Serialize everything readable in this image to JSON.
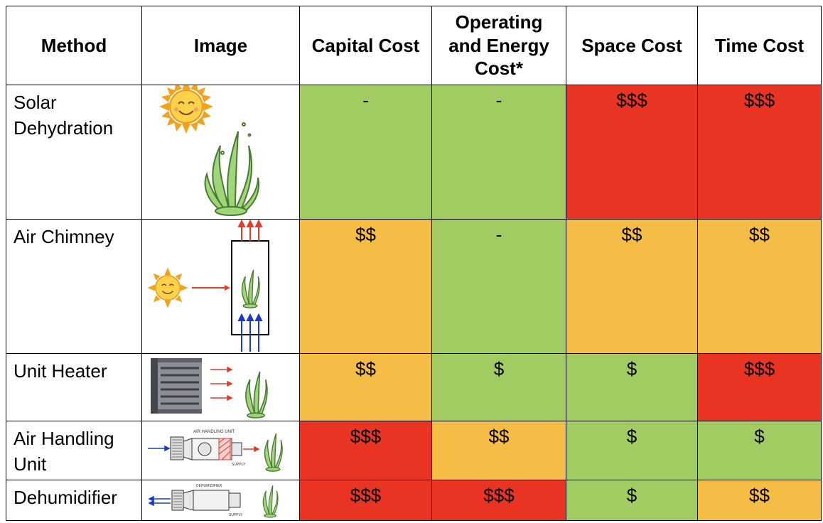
{
  "table": {
    "headers": [
      "Method",
      "Image",
      "Capital Cost",
      "Operating and Energy Cost*",
      "Space Cost",
      "Time Cost"
    ],
    "header_lines": {
      "operating": [
        "Operating",
        "and Energy",
        "Cost*"
      ]
    },
    "rows": [
      {
        "method": "Solar Dehydration",
        "method_lines": [
          "Solar",
          "Dehydration"
        ],
        "capital": "-",
        "operating": "-",
        "space": "$$$",
        "time": "$$$",
        "colors": [
          "green",
          "green",
          "red",
          "red"
        ]
      },
      {
        "method": "Air Chimney",
        "method_lines": [
          "Air Chimney"
        ],
        "capital": "$$",
        "operating": "-",
        "space": "$$",
        "time": "$$",
        "colors": [
          "orange",
          "green",
          "orange",
          "orange"
        ]
      },
      {
        "method": "Unit Heater",
        "method_lines": [
          "Unit Heater"
        ],
        "capital": "$$",
        "operating": "$",
        "space": "$",
        "time": "$$$",
        "colors": [
          "orange",
          "green",
          "green",
          "red"
        ]
      },
      {
        "method": "Air Handling Unit",
        "method_lines": [
          "Air Handling",
          "Unit"
        ],
        "capital": "$$$",
        "operating": "$$",
        "space": "$",
        "time": "$",
        "colors": [
          "red",
          "orange",
          "green",
          "green"
        ]
      },
      {
        "method": "Dehumidifier",
        "method_lines": [
          "Dehumidifier"
        ],
        "capital": "$$$",
        "operating": "$$$",
        "space": "$",
        "time": "$$",
        "colors": [
          "red",
          "red",
          "green",
          "orange"
        ]
      }
    ]
  },
  "image_labels": {
    "ahu": "AIR HANDLING UNIT",
    "ahu_supply": "SUPPLY",
    "dehumidifier": "DEHUMIDIFIER",
    "dehumidifier_supply": "SUPPLY"
  },
  "colors": {
    "green": "#a2cc62",
    "orange": "#f5bd45",
    "red": "#e93424"
  }
}
